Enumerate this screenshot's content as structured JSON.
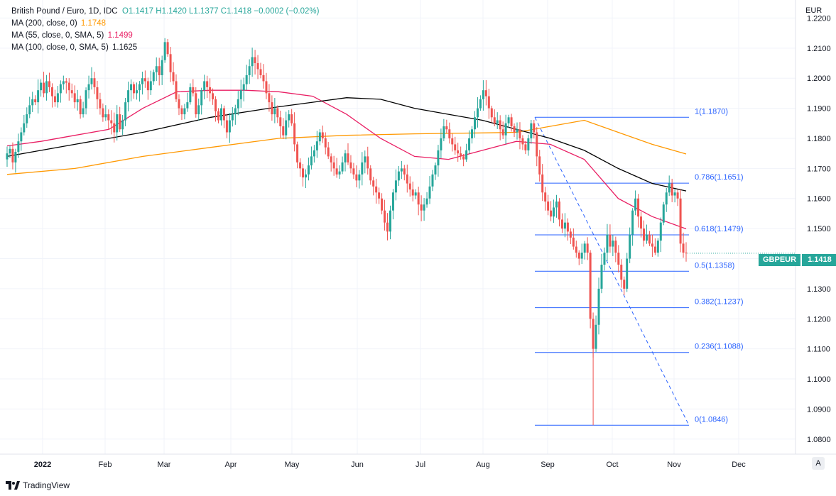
{
  "legend": {
    "instrument": "British Pound / Euro, 1D, IDC",
    "ohlc": "O1.1417  H1.1420  L1.1377  C1.1418  −0.0002 (−0.02%)",
    "ma200_label": "MA (200, close, 0)",
    "ma200_value": "1.1748",
    "ma55_label": "MA (55, close, 0, SMA, 5)",
    "ma55_value": "1.1499",
    "ma100_label": "MA (100, close, 0, SMA, 5)",
    "ma100_value": "1.1625"
  },
  "price_axis": {
    "currency": "EUR"
  },
  "symbol_tag": {
    "name": "GBPEUR",
    "price": "1.1418"
  },
  "autoscale_label": "A",
  "branding": {
    "name": "TradingView"
  },
  "colors": {
    "up": "#26a69a",
    "down": "#ef5350",
    "ma200": "#ff9800",
    "ma55": "#e91e63",
    "ma100": "#000000",
    "fib": "#2962ff",
    "grid": "#f0f3fa"
  },
  "chart_data": {
    "type": "candlestick",
    "title": "British Pound / Euro, 1D, IDC",
    "ylabel": "EUR",
    "ylim": [
      1.075,
      1.226
    ],
    "x_tick_labels": [
      "2022",
      "Feb",
      "Mar",
      "Apr",
      "May",
      "Jun",
      "Jul",
      "Aug",
      "Sep",
      "Oct",
      "Nov",
      "Dec"
    ],
    "y_tick_labels": [
      "1.2200",
      "1.2100",
      "1.2000",
      "1.1900",
      "1.1800",
      "1.1700",
      "1.1600",
      "1.1500",
      "1.1400",
      "1.1300",
      "1.1200",
      "1.1100",
      "1.1000",
      "1.0900",
      "1.0800"
    ],
    "last_close": 1.1418,
    "series": [
      {
        "name": "GBPEUR",
        "closes": [
          1.175,
          1.1765,
          1.172,
          1.1755,
          1.179,
          1.182,
          1.185,
          1.188,
          1.191,
          1.193,
          1.192,
          1.196,
          1.1985,
          1.195,
          1.199,
          1.197,
          1.194,
          1.192,
          1.195,
          1.198,
          1.199,
          1.1985,
          1.196,
          1.195,
          1.192,
          1.193,
          1.188,
          1.19,
          1.196,
          1.198,
          1.2,
          1.197,
          1.193,
          1.19,
          1.187,
          1.188,
          1.186,
          1.185,
          1.182,
          1.188,
          1.183,
          1.186,
          1.192,
          1.196,
          1.198,
          1.195,
          1.196,
          1.198,
          1.2,
          1.199,
          1.196,
          1.199,
          1.202,
          1.204,
          1.201,
          1.206,
          1.212,
          1.208,
          1.202,
          1.199,
          1.193,
          1.19,
          1.188,
          1.19,
          1.192,
          1.197,
          1.195,
          1.188,
          1.191,
          1.196,
          1.199,
          1.197,
          1.195,
          1.193,
          1.189,
          1.186,
          1.19,
          1.186,
          1.182,
          1.186,
          1.188,
          1.19,
          1.193,
          1.196,
          1.198,
          1.201,
          1.204,
          1.207,
          1.205,
          1.203,
          1.201,
          1.199,
          1.195,
          1.192,
          1.188,
          1.19,
          1.187,
          1.184,
          1.181,
          1.186,
          1.188,
          1.185,
          1.178,
          1.172,
          1.17,
          1.167,
          1.168,
          1.171,
          1.174,
          1.176,
          1.179,
          1.182,
          1.18,
          1.177,
          1.174,
          1.172,
          1.17,
          1.168,
          1.169,
          1.172,
          1.175,
          1.172,
          1.17,
          1.168,
          1.166,
          1.168,
          1.172,
          1.174,
          1.17,
          1.166,
          1.164,
          1.162,
          1.16,
          1.156,
          1.152,
          1.149,
          1.156,
          1.162,
          1.166,
          1.169,
          1.17,
          1.168,
          1.165,
          1.163,
          1.161,
          1.162,
          1.158,
          1.156,
          1.158,
          1.16,
          1.164,
          1.168,
          1.171,
          1.176,
          1.18,
          1.184,
          1.183,
          1.18,
          1.178,
          1.176,
          1.175,
          1.174,
          1.173,
          1.176,
          1.18,
          1.183,
          1.187,
          1.19,
          1.193,
          1.196,
          1.194,
          1.19,
          1.187,
          1.185,
          1.186,
          1.183,
          1.181,
          1.185,
          1.187,
          1.184,
          1.182,
          1.183,
          1.18,
          1.178,
          1.176,
          1.18,
          1.185,
          1.182,
          1.174,
          1.168,
          1.162,
          1.159,
          1.156,
          1.154,
          1.157,
          1.159,
          1.153,
          1.15,
          1.152,
          1.149,
          1.147,
          1.144,
          1.142,
          1.14,
          1.142,
          1.145,
          1.142,
          1.12,
          1.11,
          1.118,
          1.13,
          1.138,
          1.142,
          1.148,
          1.144,
          1.146,
          1.142,
          1.138,
          1.133,
          1.13,
          1.14,
          1.148,
          1.156,
          1.16,
          1.154,
          1.15,
          1.146,
          1.148,
          1.145,
          1.144,
          1.142,
          1.146,
          1.152,
          1.158,
          1.162,
          1.165,
          1.161,
          1.162,
          1.16,
          1.145,
          1.142,
          1.1418
        ]
      },
      {
        "name": "MA (200, close, 0)",
        "x_frac": [
          0.0,
          0.1,
          0.2,
          0.3,
          0.4,
          0.5,
          0.6,
          0.7,
          0.75,
          0.8,
          0.85,
          0.9,
          0.95,
          1.0
        ],
        "values": [
          1.168,
          1.17,
          1.174,
          1.177,
          1.18,
          1.181,
          1.1815,
          1.1818,
          1.182,
          1.184,
          1.186,
          1.182,
          1.178,
          1.1748
        ]
      },
      {
        "name": "MA (55, close, 0, SMA, 5)",
        "x_frac": [
          0.0,
          0.05,
          0.1,
          0.15,
          0.2,
          0.25,
          0.3,
          0.35,
          0.4,
          0.45,
          0.5,
          0.55,
          0.6,
          0.65,
          0.7,
          0.75,
          0.8,
          0.85,
          0.9,
          0.95,
          1.0
        ],
        "values": [
          1.1775,
          1.179,
          1.181,
          1.183,
          1.19,
          1.1955,
          1.196,
          1.196,
          1.1955,
          1.194,
          1.188,
          1.18,
          1.174,
          1.173,
          1.176,
          1.179,
          1.178,
          1.173,
          1.16,
          1.154,
          1.1499
        ]
      },
      {
        "name": "MA (100, close, 0, SMA, 5)",
        "x_frac": [
          0.0,
          0.1,
          0.2,
          0.3,
          0.4,
          0.45,
          0.5,
          0.55,
          0.6,
          0.65,
          0.7,
          0.75,
          0.8,
          0.85,
          0.9,
          0.95,
          1.0
        ],
        "values": [
          1.174,
          1.178,
          1.182,
          1.187,
          1.1905,
          1.192,
          1.1935,
          1.193,
          1.19,
          1.188,
          1.186,
          1.183,
          1.18,
          1.176,
          1.17,
          1.165,
          1.1625
        ]
      }
    ],
    "fibonacci": [
      {
        "label": "1(1.1870)",
        "value": 1.187
      },
      {
        "label": "0.786(1.1651)",
        "value": 1.1651
      },
      {
        "label": "0.618(1.1479)",
        "value": 1.1479
      },
      {
        "label": "0.5(1.1358)",
        "value": 1.1358
      },
      {
        "label": "0.382(1.1237)",
        "value": 1.1237
      },
      {
        "label": "0.236(1.1088)",
        "value": 1.1088
      },
      {
        "label": "0(1.0846)",
        "value": 1.0846
      }
    ],
    "fib_trend": {
      "from_value": 1.187,
      "to_value": 1.0846
    },
    "grid": true
  }
}
